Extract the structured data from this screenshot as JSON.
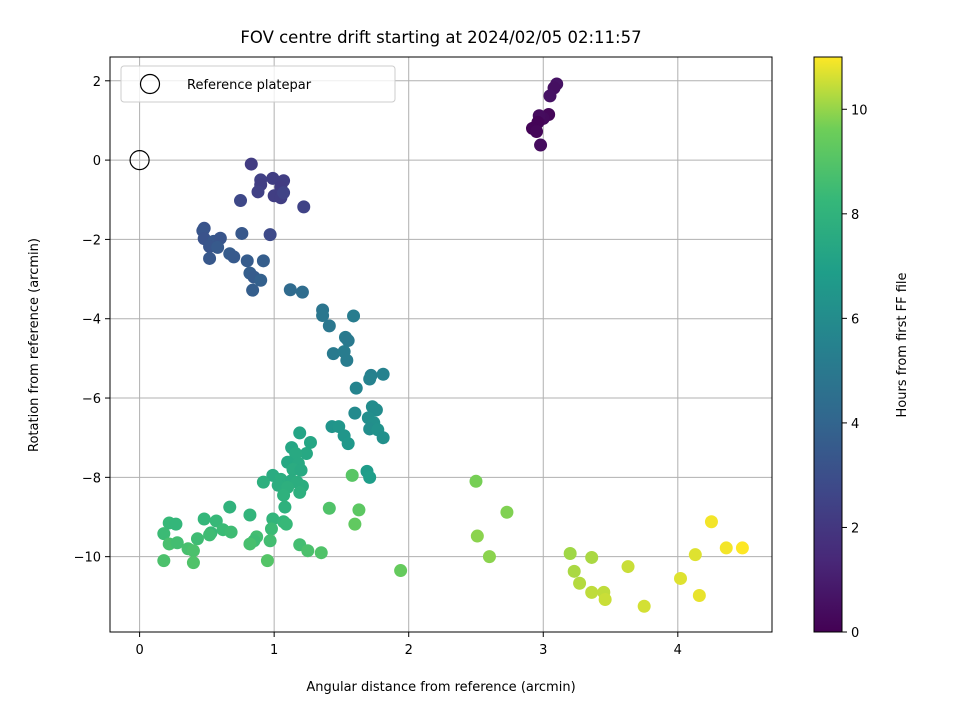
{
  "chart_data": {
    "type": "scatter",
    "title": "FOV centre drift starting at 2024/02/05 02:11:57",
    "xlabel": "Angular distance from reference (arcmin)",
    "ylabel": "Rotation from reference (arcmin)",
    "xlim": [
      -0.22,
      4.7
    ],
    "ylim": [
      -11.9,
      2.6
    ],
    "xticks": [
      0,
      1,
      2,
      3,
      4
    ],
    "yticks": [
      2,
      0,
      -2,
      -4,
      -6,
      -8,
      -10
    ],
    "xtick_labels": [
      "0",
      "1",
      "2",
      "3",
      "4"
    ],
    "ytick_labels": [
      "2",
      "0",
      "−2",
      "−4",
      "−6",
      "−8",
      "−10"
    ],
    "grid": true,
    "legend": {
      "placement": "top-left",
      "entries": [
        "Reference platepar"
      ]
    },
    "reference_point": {
      "x": 0,
      "y": 0
    },
    "colorbar": {
      "label": "Hours from first FF file",
      "range": [
        0,
        11
      ],
      "ticks": [
        0,
        2,
        4,
        6,
        8,
        10
      ],
      "tick_labels": [
        "0",
        "2",
        "4",
        "6",
        "8",
        "10"
      ],
      "colormap": "viridis"
    },
    "points": [
      {
        "x": 3.1,
        "y": 1.92,
        "t": 0.6
      },
      {
        "x": 3.08,
        "y": 1.82,
        "t": 0.5
      },
      {
        "x": 3.05,
        "y": 1.62,
        "t": 0.6
      },
      {
        "x": 3.04,
        "y": 1.15,
        "t": 0.2
      },
      {
        "x": 3.0,
        "y": 1.05,
        "t": 0.3
      },
      {
        "x": 2.97,
        "y": 1.12,
        "t": 0.4
      },
      {
        "x": 2.96,
        "y": 0.95,
        "t": 0.1
      },
      {
        "x": 2.92,
        "y": 0.8,
        "t": 0.1
      },
      {
        "x": 2.95,
        "y": 0.72,
        "t": 0.2
      },
      {
        "x": 2.98,
        "y": 0.38,
        "t": 0.4
      },
      {
        "x": 0.83,
        "y": -0.1,
        "t": 2.2
      },
      {
        "x": 0.9,
        "y": -0.5,
        "t": 2.4
      },
      {
        "x": 0.9,
        "y": -0.62,
        "t": 2.3
      },
      {
        "x": 0.99,
        "y": -0.46,
        "t": 2.3
      },
      {
        "x": 1.07,
        "y": -0.52,
        "t": 2.3
      },
      {
        "x": 1.05,
        "y": -0.68,
        "t": 2.2
      },
      {
        "x": 0.88,
        "y": -0.8,
        "t": 2.4
      },
      {
        "x": 1.0,
        "y": -0.9,
        "t": 2.3
      },
      {
        "x": 1.05,
        "y": -0.95,
        "t": 2.3
      },
      {
        "x": 1.07,
        "y": -0.82,
        "t": 2.5
      },
      {
        "x": 0.75,
        "y": -1.02,
        "t": 2.7
      },
      {
        "x": 1.22,
        "y": -1.18,
        "t": 2.5
      },
      {
        "x": 0.97,
        "y": -1.88,
        "t": 2.8
      },
      {
        "x": 0.48,
        "y": -1.72,
        "t": 3.2
      },
      {
        "x": 0.47,
        "y": -1.78,
        "t": 3.3
      },
      {
        "x": 0.48,
        "y": -1.98,
        "t": 3.2
      },
      {
        "x": 0.55,
        "y": -2.05,
        "t": 3.4
      },
      {
        "x": 0.6,
        "y": -1.97,
        "t": 3.3
      },
      {
        "x": 0.76,
        "y": -1.85,
        "t": 3.4
      },
      {
        "x": 0.52,
        "y": -2.18,
        "t": 3.3
      },
      {
        "x": 0.58,
        "y": -2.2,
        "t": 3.5
      },
      {
        "x": 0.67,
        "y": -2.36,
        "t": 3.6
      },
      {
        "x": 0.7,
        "y": -2.44,
        "t": 3.5
      },
      {
        "x": 0.52,
        "y": -2.48,
        "t": 3.4
      },
      {
        "x": 0.8,
        "y": -2.54,
        "t": 3.6
      },
      {
        "x": 0.92,
        "y": -2.54,
        "t": 3.7
      },
      {
        "x": 0.82,
        "y": -2.85,
        "t": 3.7
      },
      {
        "x": 0.85,
        "y": -2.95,
        "t": 3.6
      },
      {
        "x": 0.9,
        "y": -3.03,
        "t": 3.8
      },
      {
        "x": 0.84,
        "y": -3.28,
        "t": 3.7
      },
      {
        "x": 1.12,
        "y": -3.27,
        "t": 4.3
      },
      {
        "x": 1.21,
        "y": -3.33,
        "t": 4.4
      },
      {
        "x": 1.36,
        "y": -3.78,
        "t": 4.8
      },
      {
        "x": 1.36,
        "y": -3.92,
        "t": 4.9
      },
      {
        "x": 1.41,
        "y": -4.18,
        "t": 4.9
      },
      {
        "x": 1.59,
        "y": -3.93,
        "t": 5.2
      },
      {
        "x": 1.53,
        "y": -4.47,
        "t": 5.1
      },
      {
        "x": 1.55,
        "y": -4.55,
        "t": 5.0
      },
      {
        "x": 1.44,
        "y": -4.88,
        "t": 5.1
      },
      {
        "x": 1.52,
        "y": -4.83,
        "t": 5.2
      },
      {
        "x": 1.54,
        "y": -5.05,
        "t": 5.2
      },
      {
        "x": 1.72,
        "y": -5.43,
        "t": 5.4
      },
      {
        "x": 1.81,
        "y": -5.4,
        "t": 5.5
      },
      {
        "x": 1.71,
        "y": -5.52,
        "t": 5.5
      },
      {
        "x": 1.61,
        "y": -5.75,
        "t": 5.6
      },
      {
        "x": 1.6,
        "y": -6.38,
        "t": 5.9
      },
      {
        "x": 1.73,
        "y": -6.22,
        "t": 6.0
      },
      {
        "x": 1.76,
        "y": -6.3,
        "t": 6.0
      },
      {
        "x": 1.7,
        "y": -6.5,
        "t": 6.1
      },
      {
        "x": 1.74,
        "y": -6.62,
        "t": 6.2
      },
      {
        "x": 1.71,
        "y": -6.78,
        "t": 6.1
      },
      {
        "x": 1.77,
        "y": -6.8,
        "t": 6.3
      },
      {
        "x": 1.81,
        "y": -7.0,
        "t": 6.2
      },
      {
        "x": 1.43,
        "y": -6.72,
        "t": 6.4
      },
      {
        "x": 1.48,
        "y": -6.72,
        "t": 6.5
      },
      {
        "x": 1.52,
        "y": -6.95,
        "t": 6.5
      },
      {
        "x": 1.55,
        "y": -7.15,
        "t": 6.6
      },
      {
        "x": 1.69,
        "y": -7.85,
        "t": 6.8
      },
      {
        "x": 1.71,
        "y": -8.0,
        "t": 6.9
      },
      {
        "x": 1.19,
        "y": -6.88,
        "t": 7.2
      },
      {
        "x": 1.27,
        "y": -7.12,
        "t": 7.3
      },
      {
        "x": 1.13,
        "y": -7.25,
        "t": 7.3
      },
      {
        "x": 1.24,
        "y": -7.4,
        "t": 7.4
      },
      {
        "x": 1.16,
        "y": -7.4,
        "t": 7.5
      },
      {
        "x": 1.1,
        "y": -7.62,
        "t": 7.4
      },
      {
        "x": 1.18,
        "y": -7.65,
        "t": 7.5
      },
      {
        "x": 1.14,
        "y": -7.8,
        "t": 7.6
      },
      {
        "x": 1.2,
        "y": -7.82,
        "t": 7.5
      },
      {
        "x": 0.99,
        "y": -7.95,
        "t": 7.6
      },
      {
        "x": 1.05,
        "y": -8.05,
        "t": 7.7
      },
      {
        "x": 1.13,
        "y": -8.08,
        "t": 7.6
      },
      {
        "x": 1.17,
        "y": -8.12,
        "t": 7.7
      },
      {
        "x": 0.92,
        "y": -8.12,
        "t": 7.8
      },
      {
        "x": 1.03,
        "y": -8.2,
        "t": 7.7
      },
      {
        "x": 1.1,
        "y": -8.25,
        "t": 7.8
      },
      {
        "x": 1.21,
        "y": -8.22,
        "t": 7.7
      },
      {
        "x": 1.19,
        "y": -8.38,
        "t": 7.8
      },
      {
        "x": 1.07,
        "y": -8.45,
        "t": 7.9
      },
      {
        "x": 1.08,
        "y": -8.75,
        "t": 7.9
      },
      {
        "x": 0.82,
        "y": -8.95,
        "t": 8.1
      },
      {
        "x": 0.67,
        "y": -8.75,
        "t": 8.0
      },
      {
        "x": 0.48,
        "y": -9.05,
        "t": 8.2
      },
      {
        "x": 0.57,
        "y": -9.1,
        "t": 8.3
      },
      {
        "x": 0.22,
        "y": -9.15,
        "t": 8.3
      },
      {
        "x": 0.27,
        "y": -9.18,
        "t": 8.2
      },
      {
        "x": 0.99,
        "y": -9.05,
        "t": 8.1
      },
      {
        "x": 1.07,
        "y": -9.12,
        "t": 8.2
      },
      {
        "x": 1.09,
        "y": -9.18,
        "t": 8.3
      },
      {
        "x": 0.98,
        "y": -9.3,
        "t": 8.4
      },
      {
        "x": 0.62,
        "y": -9.32,
        "t": 8.4
      },
      {
        "x": 0.53,
        "y": -9.4,
        "t": 8.3
      },
      {
        "x": 0.68,
        "y": -9.38,
        "t": 8.5
      },
      {
        "x": 0.52,
        "y": -9.45,
        "t": 8.5
      },
      {
        "x": 0.18,
        "y": -9.42,
        "t": 8.4
      },
      {
        "x": 0.43,
        "y": -9.55,
        "t": 8.5
      },
      {
        "x": 0.87,
        "y": -9.5,
        "t": 8.6
      },
      {
        "x": 0.85,
        "y": -9.6,
        "t": 8.5
      },
      {
        "x": 0.97,
        "y": -9.6,
        "t": 8.6
      },
      {
        "x": 0.22,
        "y": -9.68,
        "t": 8.7
      },
      {
        "x": 0.28,
        "y": -9.65,
        "t": 8.6
      },
      {
        "x": 0.82,
        "y": -9.68,
        "t": 8.7
      },
      {
        "x": 0.36,
        "y": -9.8,
        "t": 8.7
      },
      {
        "x": 0.4,
        "y": -9.85,
        "t": 8.8
      },
      {
        "x": 1.19,
        "y": -9.7,
        "t": 8.6
      },
      {
        "x": 1.25,
        "y": -9.85,
        "t": 8.8
      },
      {
        "x": 1.35,
        "y": -9.9,
        "t": 8.9
      },
      {
        "x": 1.41,
        "y": -8.78,
        "t": 8.9
      },
      {
        "x": 0.18,
        "y": -10.1,
        "t": 8.8
      },
      {
        "x": 0.4,
        "y": -10.15,
        "t": 8.9
      },
      {
        "x": 0.95,
        "y": -10.1,
        "t": 9.0
      },
      {
        "x": 1.58,
        "y": -7.95,
        "t": 9.1
      },
      {
        "x": 1.63,
        "y": -8.82,
        "t": 9.2
      },
      {
        "x": 1.6,
        "y": -9.18,
        "t": 9.3
      },
      {
        "x": 1.94,
        "y": -10.35,
        "t": 9.4
      },
      {
        "x": 2.5,
        "y": -8.1,
        "t": 9.7
      },
      {
        "x": 2.73,
        "y": -8.88,
        "t": 9.8
      },
      {
        "x": 2.51,
        "y": -9.48,
        "t": 9.9
      },
      {
        "x": 2.6,
        "y": -10.0,
        "t": 9.9
      },
      {
        "x": 3.2,
        "y": -9.92,
        "t": 10.1
      },
      {
        "x": 3.36,
        "y": -10.02,
        "t": 10.2
      },
      {
        "x": 3.23,
        "y": -10.37,
        "t": 10.2
      },
      {
        "x": 3.27,
        "y": -10.67,
        "t": 10.3
      },
      {
        "x": 3.36,
        "y": -10.9,
        "t": 10.4
      },
      {
        "x": 3.45,
        "y": -10.9,
        "t": 10.4
      },
      {
        "x": 3.46,
        "y": -11.08,
        "t": 10.5
      },
      {
        "x": 3.63,
        "y": -10.25,
        "t": 10.5
      },
      {
        "x": 3.75,
        "y": -11.25,
        "t": 10.6
      },
      {
        "x": 4.02,
        "y": -10.55,
        "t": 10.7
      },
      {
        "x": 4.13,
        "y": -9.95,
        "t": 10.7
      },
      {
        "x": 4.16,
        "y": -10.98,
        "t": 10.8
      },
      {
        "x": 4.25,
        "y": -9.12,
        "t": 10.9
      },
      {
        "x": 4.36,
        "y": -9.78,
        "t": 10.9
      },
      {
        "x": 4.48,
        "y": -9.78,
        "t": 11.0
      }
    ]
  }
}
